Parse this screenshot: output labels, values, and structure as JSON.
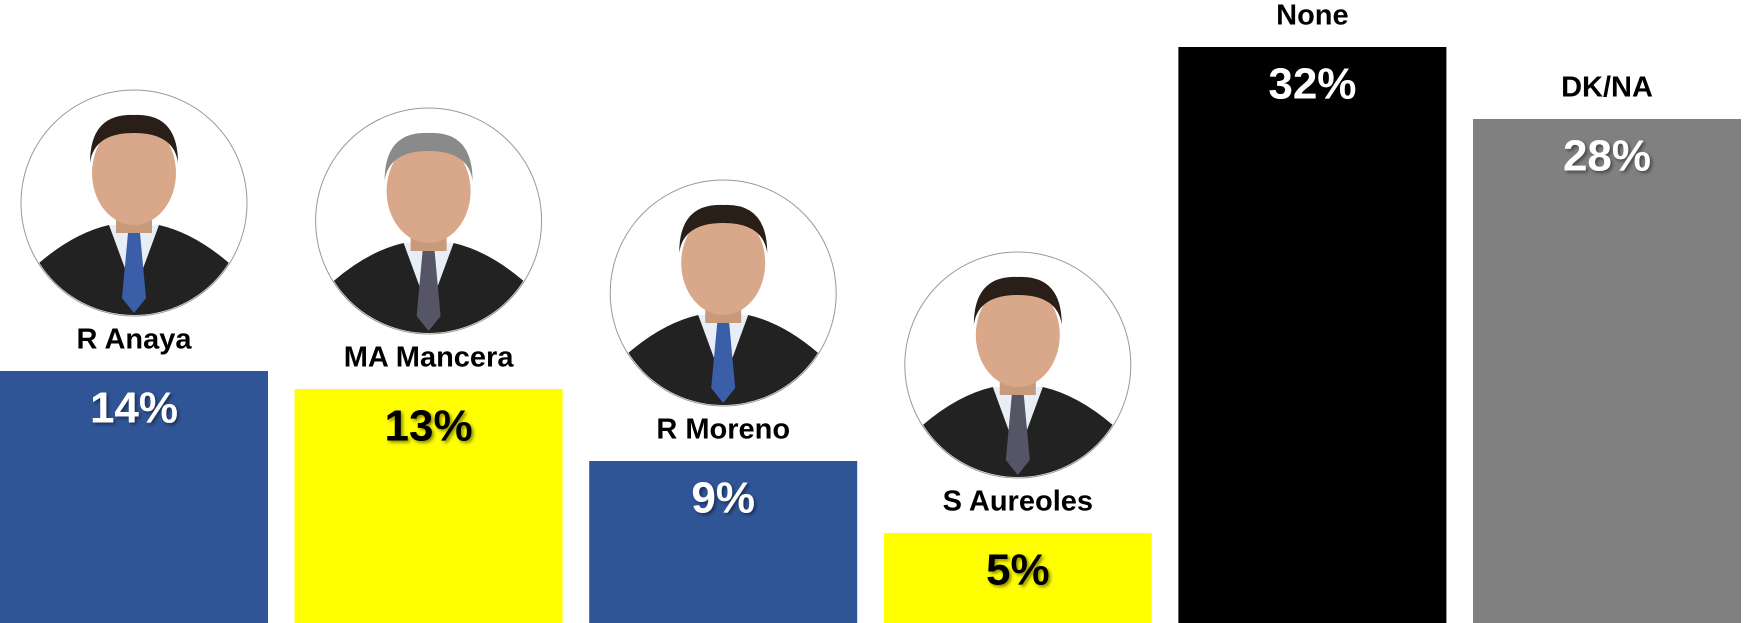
{
  "chart_data": {
    "type": "bar",
    "categories": [
      "R Anaya",
      "MA Mancera",
      "R Moreno",
      "S Aureoles",
      "None",
      "DK/NA"
    ],
    "values": [
      14,
      13,
      9,
      5,
      32,
      28
    ],
    "value_labels": [
      "14%",
      "13%",
      "9%",
      "5%",
      "32%",
      "28%"
    ],
    "colors": [
      "#2f5597",
      "#ffff00",
      "#2f5597",
      "#ffff00",
      "#000000",
      "#808080"
    ]
  }
}
